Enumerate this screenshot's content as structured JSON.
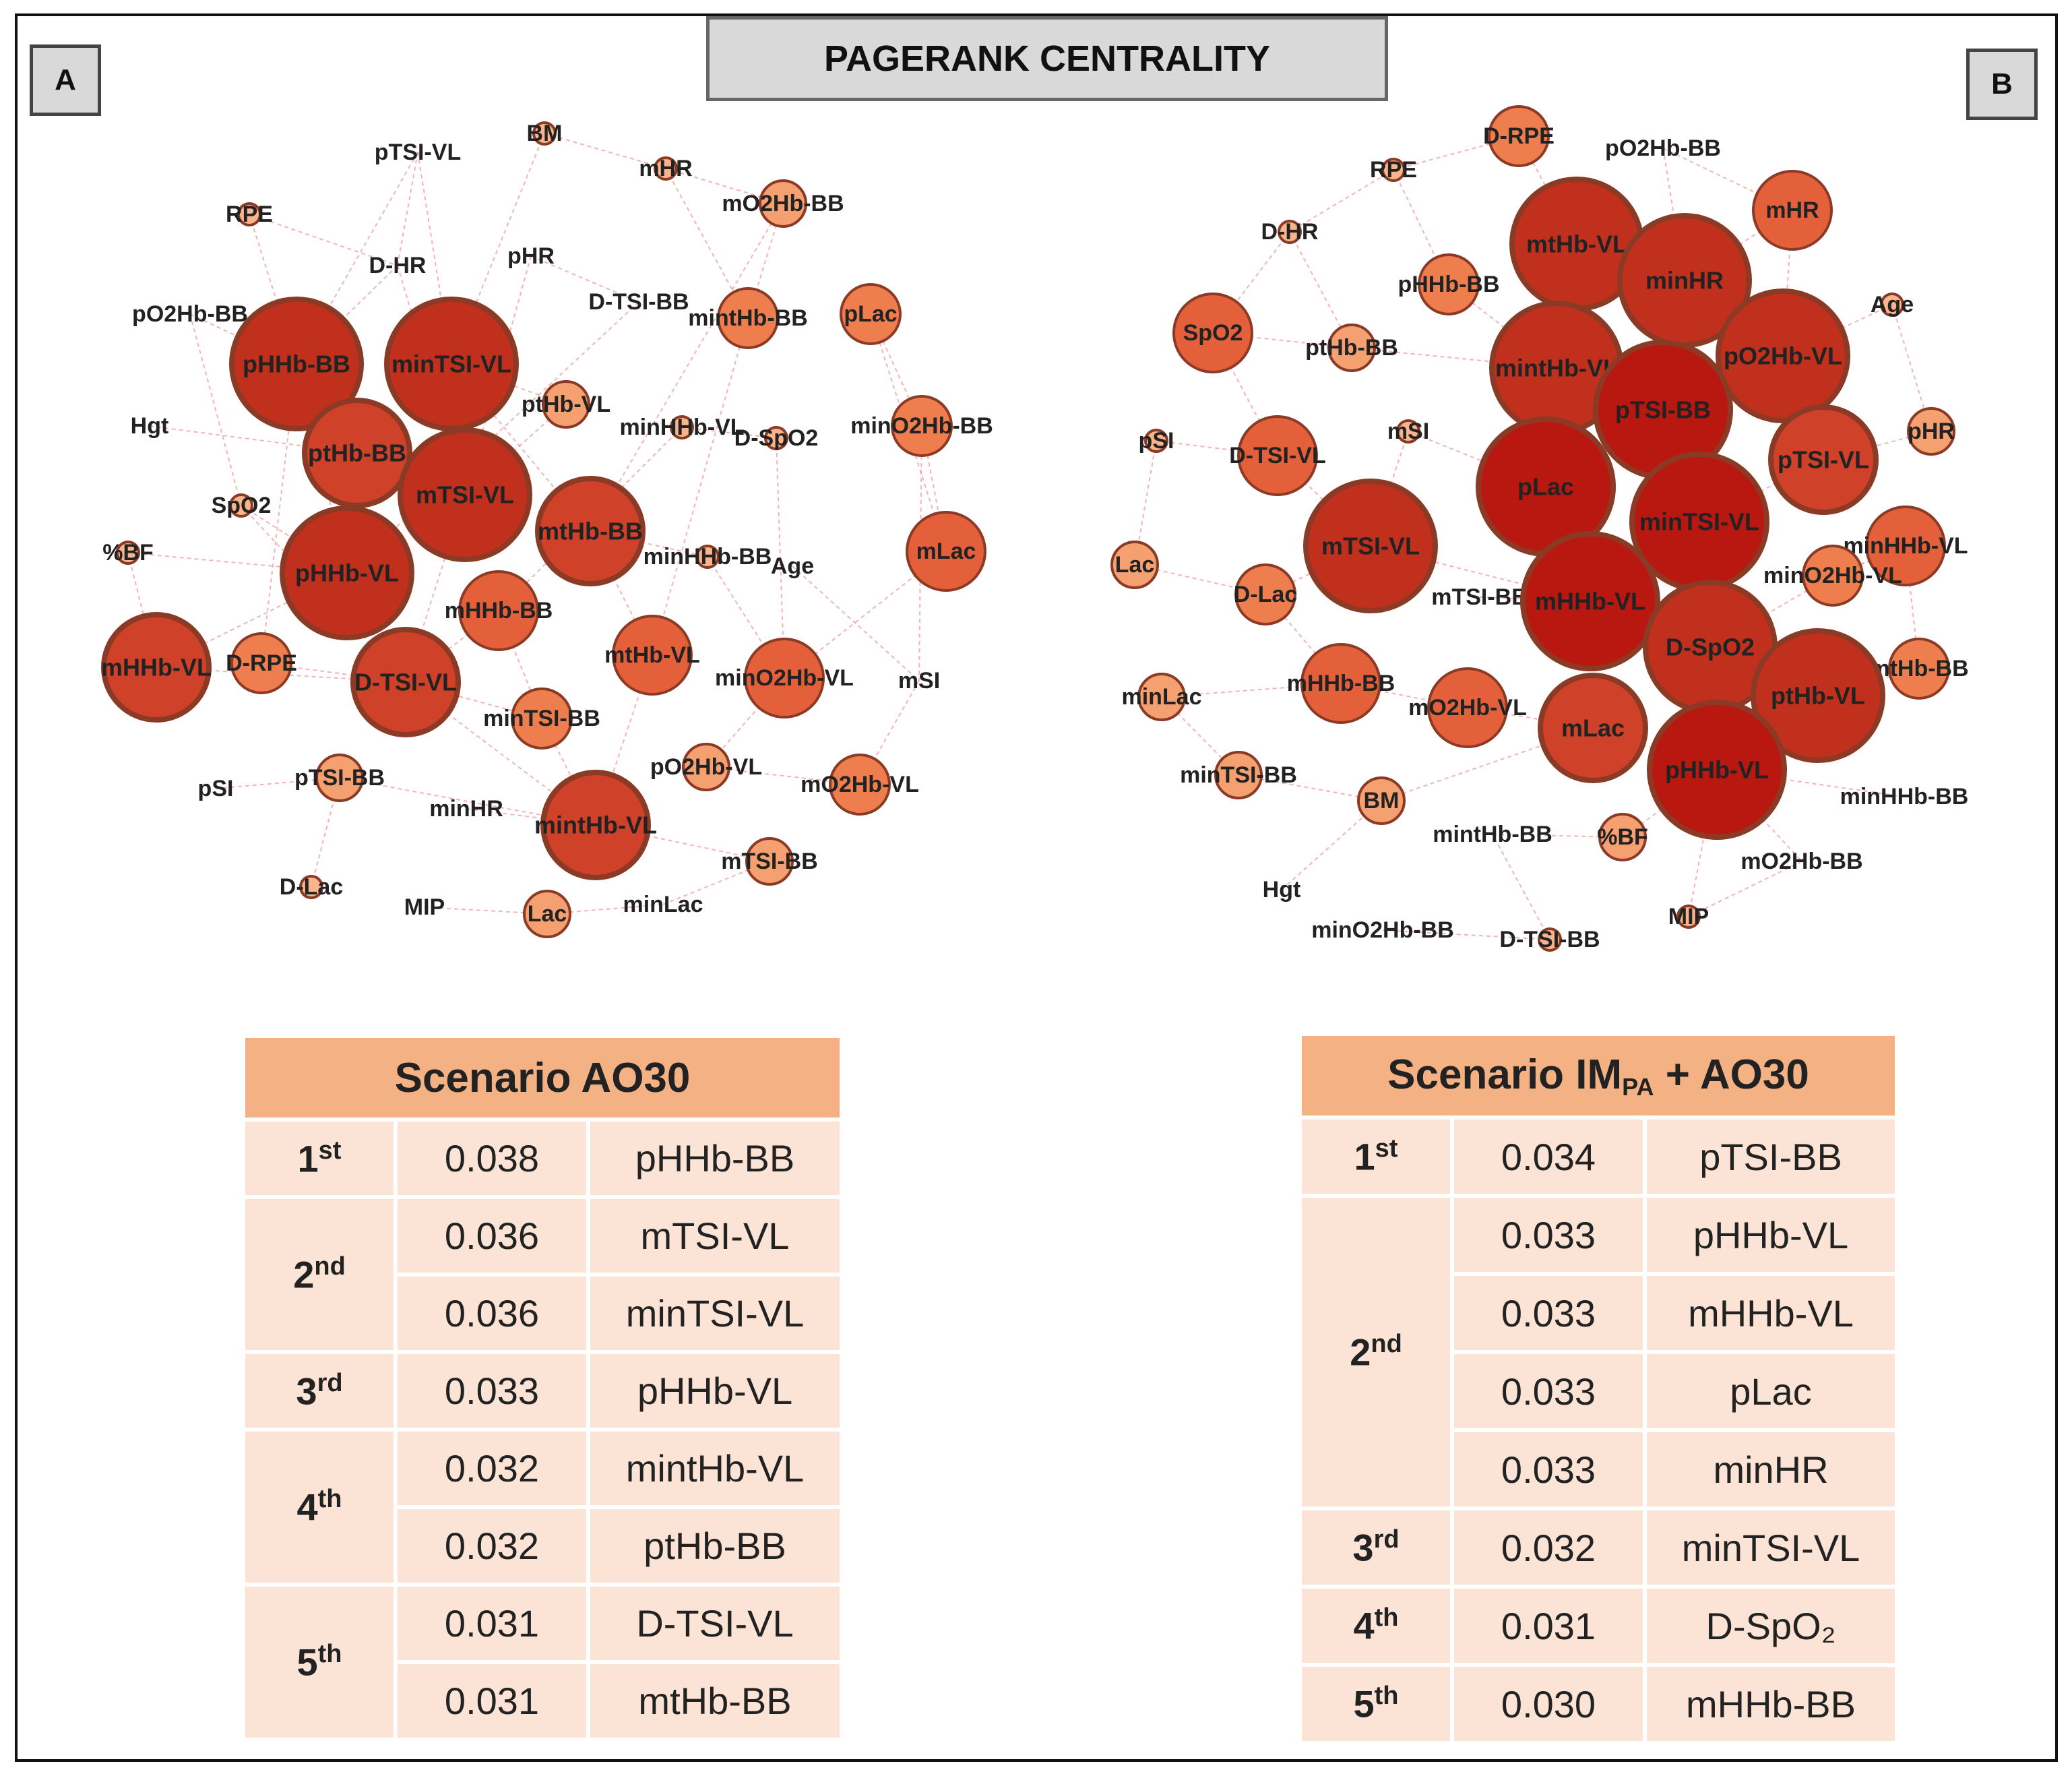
{
  "title": "PAGERANK CENTRALITY",
  "panels": [
    {
      "label": "A",
      "nodes": [
        {
          "name": "pTSI-VL",
          "size": 0
        },
        {
          "name": "BM",
          "size": 1
        },
        {
          "name": "mHR",
          "size": 1
        },
        {
          "name": "mO2Hb-BB",
          "size": 2
        },
        {
          "name": "RPE",
          "size": 1
        },
        {
          "name": "D-HR",
          "size": 0
        },
        {
          "name": "pHR",
          "size": 0
        },
        {
          "name": "D-TSI-BB",
          "size": 0
        },
        {
          "name": "mintHb-BB",
          "size": 3
        },
        {
          "name": "pLac",
          "size": 3
        },
        {
          "name": "pO2Hb-BB",
          "size": 0
        },
        {
          "name": "pHHb-BB",
          "size": 6
        },
        {
          "name": "minTSI-VL",
          "size": 6
        },
        {
          "name": "Hgt",
          "size": 0
        },
        {
          "name": "ptHb-VL",
          "size": 2
        },
        {
          "name": "minHHb-VL",
          "size": 1
        },
        {
          "name": "D-SpO2",
          "size": 1
        },
        {
          "name": "minO2Hb-BB",
          "size": 3
        },
        {
          "name": "ptHb-BB",
          "size": 5
        },
        {
          "name": "mTSI-VL",
          "size": 6
        },
        {
          "name": "SpO2",
          "size": 1
        },
        {
          "name": "mtHb-BB",
          "size": 5
        },
        {
          "name": "%BF",
          "size": 1
        },
        {
          "name": "minHHb-BB",
          "size": 1
        },
        {
          "name": "Age",
          "size": 0
        },
        {
          "name": "mLac",
          "size": 4
        },
        {
          "name": "pHHb-VL",
          "size": 6
        },
        {
          "name": "mHHb-BB",
          "size": 4
        },
        {
          "name": "mHHb-VL",
          "size": 5
        },
        {
          "name": "D-RPE",
          "size": 3
        },
        {
          "name": "D-TSI-VL",
          "size": 5
        },
        {
          "name": "mtHb-VL",
          "size": 4
        },
        {
          "name": "minO2Hb-VL",
          "size": 4
        },
        {
          "name": "mSI",
          "size": 0
        },
        {
          "name": "minTSI-BB",
          "size": 3
        },
        {
          "name": "pSI",
          "size": 0
        },
        {
          "name": "pTSI-BB",
          "size": 2
        },
        {
          "name": "minHR",
          "size": 0
        },
        {
          "name": "mintHb-VL",
          "size": 5
        },
        {
          "name": "pO2Hb-VL",
          "size": 2
        },
        {
          "name": "mO2Hb-VL",
          "size": 3
        },
        {
          "name": "mTSI-BB",
          "size": 2
        },
        {
          "name": "D-Lac",
          "size": 1
        },
        {
          "name": "MIP",
          "size": 0
        },
        {
          "name": "Lac",
          "size": 2
        },
        {
          "name": "minLac",
          "size": 0
        }
      ]
    },
    {
      "label": "B",
      "nodes": [
        {
          "name": "D-RPE",
          "size": 3
        },
        {
          "name": "pO2Hb-BB",
          "size": 0
        },
        {
          "name": "RPE",
          "size": 1
        },
        {
          "name": "mHR",
          "size": 4
        },
        {
          "name": "mtHb-VL",
          "size": 6
        },
        {
          "name": "minHR",
          "size": 6
        },
        {
          "name": "D-HR",
          "size": 1
        },
        {
          "name": "pHHb-BB",
          "size": 3
        },
        {
          "name": "Age",
          "size": 1
        },
        {
          "name": "SpO2",
          "size": 4
        },
        {
          "name": "ptHb-BB",
          "size": 2
        },
        {
          "name": "mintHb-VL",
          "size": 6
        },
        {
          "name": "pO2Hb-VL",
          "size": 6
        },
        {
          "name": "pTSI-BB",
          "size": 7
        },
        {
          "name": "pSI",
          "size": 1
        },
        {
          "name": "mSI",
          "size": 1
        },
        {
          "name": "pHR",
          "size": 2
        },
        {
          "name": "D-TSI-VL",
          "size": 4
        },
        {
          "name": "pTSI-VL",
          "size": 5
        },
        {
          "name": "pLac",
          "size": 7
        },
        {
          "name": "minTSI-VL",
          "size": 7
        },
        {
          "name": "Lac",
          "size": 2
        },
        {
          "name": "mTSI-VL",
          "size": 6
        },
        {
          "name": "minHHb-VL",
          "size": 4
        },
        {
          "name": "D-Lac",
          "size": 3
        },
        {
          "name": "mTSI-BB",
          "size": 0
        },
        {
          "name": "minO2Hb-VL",
          "size": 3
        },
        {
          "name": "mHHb-VL",
          "size": 7
        },
        {
          "name": "D-SpO2",
          "size": 6
        },
        {
          "name": "mtHb-BB",
          "size": 3
        },
        {
          "name": "minLac",
          "size": 2
        },
        {
          "name": "mHHb-BB",
          "size": 4
        },
        {
          "name": "mO2Hb-VL",
          "size": 4
        },
        {
          "name": "mLac",
          "size": 5
        },
        {
          "name": "ptHb-VL",
          "size": 6
        },
        {
          "name": "minTSI-BB",
          "size": 2
        },
        {
          "name": "BM",
          "size": 2
        },
        {
          "name": "pHHb-VL",
          "size": 7
        },
        {
          "name": "minHHb-BB",
          "size": 0
        },
        {
          "name": "mintHb-BB",
          "size": 0
        },
        {
          "name": "%BF",
          "size": 2
        },
        {
          "name": "Hgt",
          "size": 0
        },
        {
          "name": "mO2Hb-BB",
          "size": 0
        },
        {
          "name": "MIP",
          "size": 1
        },
        {
          "name": "minO2Hb-BB",
          "size": 0
        },
        {
          "name": "D-TSI-BB",
          "size": 1
        }
      ]
    }
  ],
  "tables": [
    {
      "scenario_prefix": "Scenario AO30",
      "scenario_sub": "",
      "scenario_suffix": "",
      "groups": [
        {
          "rank": "1",
          "suffix": "st",
          "rows": [
            {
              "value": "0.038",
              "variable": "pHHb-BB"
            }
          ]
        },
        {
          "rank": "2",
          "suffix": "nd",
          "rows": [
            {
              "value": "0.036",
              "variable": "mTSI-VL"
            },
            {
              "value": "0.036",
              "variable": "minTSI-VL"
            }
          ]
        },
        {
          "rank": "3",
          "suffix": "rd",
          "rows": [
            {
              "value": "0.033",
              "variable": "pHHb-VL"
            }
          ]
        },
        {
          "rank": "4",
          "suffix": "th",
          "rows": [
            {
              "value": "0.032",
              "variable": "mintHb-VL"
            },
            {
              "value": "0.032",
              "variable": "ptHb-BB"
            }
          ]
        },
        {
          "rank": "5",
          "suffix": "th",
          "rows": [
            {
              "value": "0.031",
              "variable": "D-TSI-VL"
            },
            {
              "value": "0.031",
              "variable": "mtHb-BB"
            }
          ]
        }
      ]
    },
    {
      "scenario_prefix": "Scenario IM",
      "scenario_sub": "PA",
      "scenario_suffix": " + AO30",
      "groups": [
        {
          "rank": "1",
          "suffix": "st",
          "rows": [
            {
              "value": "0.034",
              "variable": "pTSI-BB"
            }
          ]
        },
        {
          "rank": "2",
          "suffix": "nd",
          "rows": [
            {
              "value": "0.033",
              "variable": "pHHb-VL"
            },
            {
              "value": "0.033",
              "variable": "mHHb-VL"
            },
            {
              "value": "0.033",
              "variable": "pLac"
            },
            {
              "value": "0.033",
              "variable": "minHR"
            }
          ]
        },
        {
          "rank": "3",
          "suffix": "rd",
          "rows": [
            {
              "value": "0.032",
              "variable": "minTSI-VL"
            }
          ]
        },
        {
          "rank": "4",
          "suffix": "th",
          "rows": [
            {
              "value": "0.031",
              "variable": "D-SpO₂"
            }
          ]
        },
        {
          "rank": "5",
          "suffix": "th",
          "rows": [
            {
              "value": "0.030",
              "variable": "mHHb-BB"
            }
          ]
        }
      ]
    }
  ],
  "colors": {
    "edge": "#e87878",
    "node_fill_scale": [
      "#fce0cc",
      "#f9b48c",
      "#f5a071",
      "#ef7e4e",
      "#e4603a",
      "#cf4128",
      "#c1301d",
      "#b81810"
    ],
    "node_stroke": "#8a3a25"
  }
}
